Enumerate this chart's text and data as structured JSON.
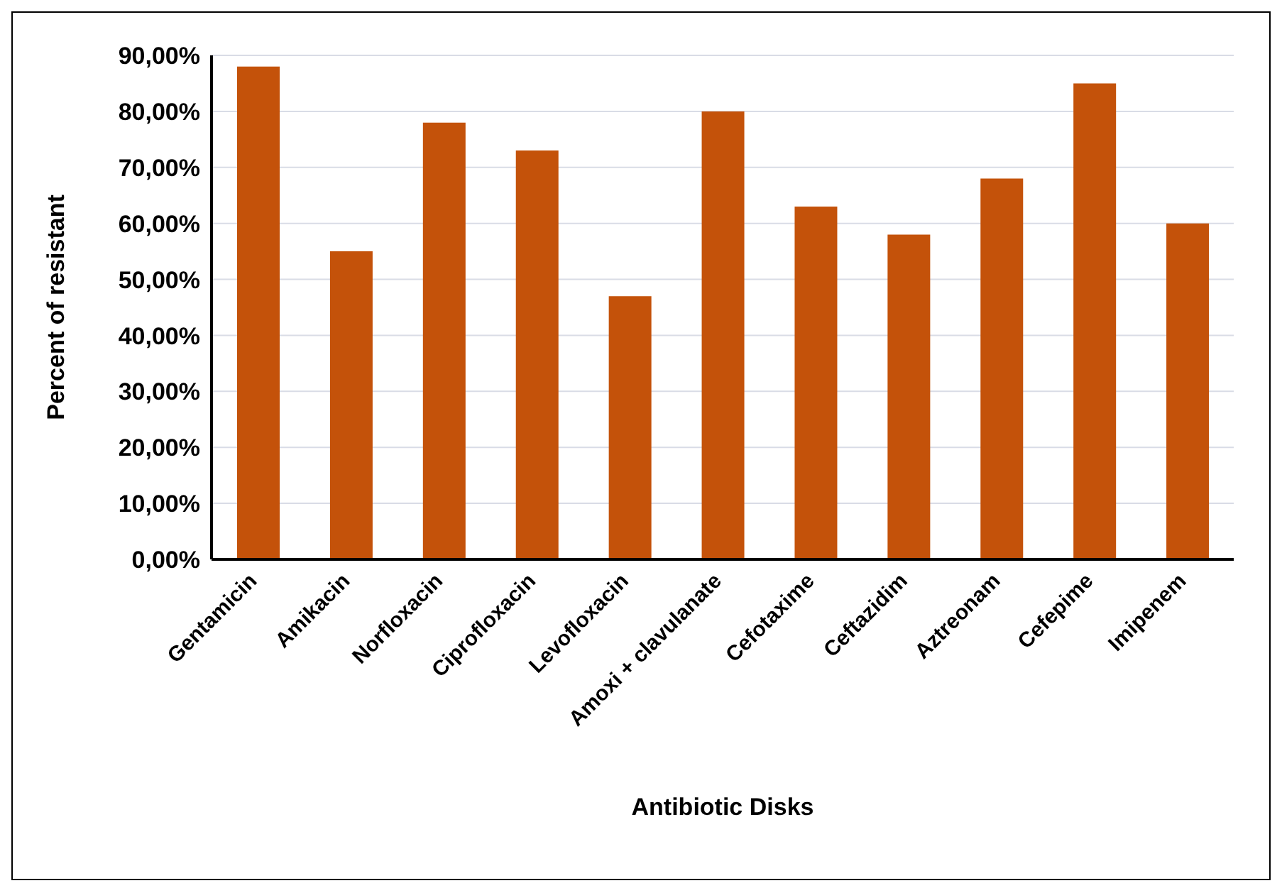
{
  "chart_data": {
    "type": "bar",
    "xlabel": "Antibiotic Disks",
    "ylabel": "Percent of resistant",
    "categories": [
      "Gentamicin",
      "Amikacin",
      "Norfloxacin",
      "Ciprofloxacin",
      "Levofloxacin",
      "Amoxi + clavulanate",
      "Cefotaxime",
      "Ceftazidim",
      "Aztreonam",
      "Cefepime",
      "Imipenem"
    ],
    "values": [
      88,
      55,
      78,
      73,
      47,
      80,
      63,
      58,
      68,
      85,
      60
    ],
    "color": "#c4520a",
    "ylim": [
      0,
      90
    ],
    "yticks": [
      {
        "value": 0,
        "label": "0,00%"
      },
      {
        "value": 10,
        "label": "10,00%"
      },
      {
        "value": 20,
        "label": "20,00%"
      },
      {
        "value": 30,
        "label": "30,00%"
      },
      {
        "value": 40,
        "label": "40,00%"
      },
      {
        "value": 50,
        "label": "50,00%"
      },
      {
        "value": 60,
        "label": "60,00%"
      },
      {
        "value": 70,
        "label": "70,00%"
      },
      {
        "value": 80,
        "label": "80,00%"
      },
      {
        "value": 90,
        "label": "90,00%"
      }
    ],
    "grid": "y"
  }
}
